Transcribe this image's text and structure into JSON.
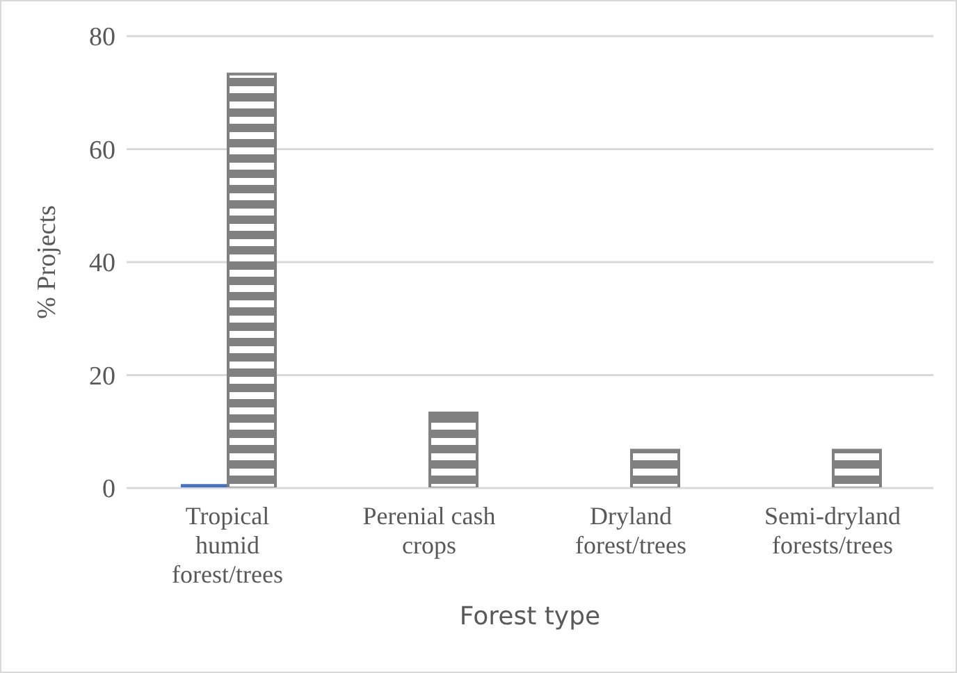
{
  "chart_data": {
    "type": "bar",
    "xlabel": "Forest type",
    "ylabel": "% Projects",
    "categories": [
      "Tropical humid forest/trees",
      "Perenial cash crops",
      "Dryland forest/trees",
      "Semi-dryland forests/trees"
    ],
    "series": [
      {
        "color": "#4472c4",
        "values": [
          0.7,
          0,
          0,
          0
        ]
      },
      {
        "color": "#808080",
        "values": [
          73.3,
          13.3,
          6.7,
          6.7
        ]
      }
    ],
    "ylim": [
      0,
      80
    ],
    "yticks": [
      0,
      20,
      40,
      60,
      80
    ],
    "grid": "y",
    "legend": false
  }
}
